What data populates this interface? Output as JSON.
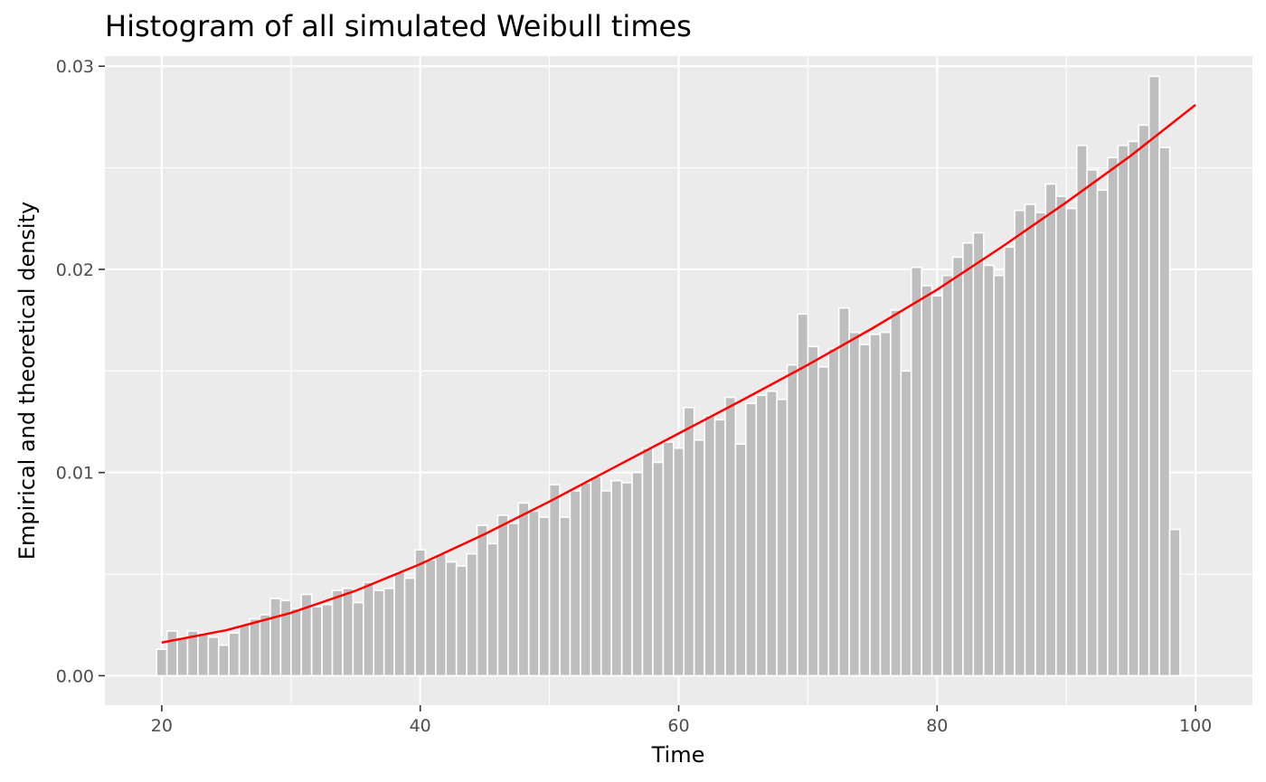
{
  "chart_data": {
    "type": "bar",
    "title": "Histogram of all simulated Weibull times",
    "xlabel": "Time",
    "ylabel": "Empirical and theoretical density",
    "xlim": [
      15.6,
      104.4
    ],
    "ylim": [
      -0.00145,
      0.0305
    ],
    "x_ticks": [
      20,
      40,
      60,
      80,
      100
    ],
    "x_tick_labels": [
      "20",
      "40",
      "60",
      "80",
      "100"
    ],
    "y_ticks": [
      0,
      0.01,
      0.02,
      0.03
    ],
    "y_tick_labels": [
      "0.00",
      "0.01",
      "0.02",
      "0.03"
    ],
    "grid": true,
    "bin_start": 19.6,
    "bin_width": 0.8,
    "bars": [
      0.0013,
      0.0022,
      0.0019,
      0.0022,
      0.0021,
      0.0019,
      0.0015,
      0.0021,
      0.0025,
      0.0028,
      0.003,
      0.0038,
      0.0037,
      0.0033,
      0.004,
      0.0034,
      0.0035,
      0.0042,
      0.0043,
      0.0036,
      0.0046,
      0.0042,
      0.0043,
      0.0051,
      0.0048,
      0.0062,
      0.0057,
      0.006,
      0.0056,
      0.0054,
      0.006,
      0.0074,
      0.0065,
      0.0079,
      0.0075,
      0.0085,
      0.0081,
      0.0078,
      0.0094,
      0.0078,
      0.0091,
      0.0095,
      0.0098,
      0.0091,
      0.0096,
      0.0095,
      0.01,
      0.0112,
      0.0105,
      0.0115,
      0.0112,
      0.0132,
      0.0116,
      0.0128,
      0.0126,
      0.0137,
      0.0114,
      0.0134,
      0.0138,
      0.014,
      0.0136,
      0.0153,
      0.0178,
      0.0162,
      0.0152,
      0.0161,
      0.0181,
      0.0169,
      0.0163,
      0.0168,
      0.0169,
      0.018,
      0.015,
      0.0201,
      0.0192,
      0.0187,
      0.0197,
      0.0206,
      0.0213,
      0.0218,
      0.0202,
      0.0197,
      0.0211,
      0.0229,
      0.0232,
      0.0228,
      0.0242,
      0.0236,
      0.023,
      0.0261,
      0.0249,
      0.0239,
      0.0255,
      0.0261,
      0.0263,
      0.0271,
      0.0295,
      0.026,
      0.0072
    ],
    "bar_fill": "#bebebe",
    "bar_outline": "#ffffff",
    "density_curve": {
      "type": "line",
      "color": "#ff0000",
      "x": [
        20,
        25,
        30,
        35,
        40,
        45,
        50,
        55,
        60,
        65,
        70,
        75,
        80,
        85,
        90,
        95,
        100
      ],
      "y": [
        0.00163,
        0.00224,
        0.00309,
        0.00418,
        0.00549,
        0.00697,
        0.00857,
        0.01025,
        0.01192,
        0.01359,
        0.0153,
        0.0171,
        0.019,
        0.0211,
        0.0233,
        0.0256,
        0.0281
      ]
    },
    "panel_background": "#ebebeb",
    "grid_color": "#ffffff"
  }
}
